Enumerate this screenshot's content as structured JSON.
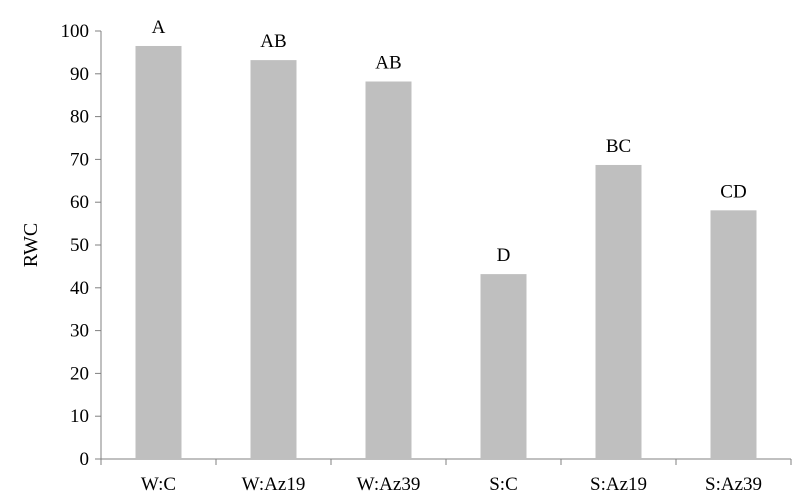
{
  "chart_data": {
    "type": "bar",
    "categories": [
      "W:C",
      "W:Az19",
      "W:Az39",
      "S:C",
      "S:Az19",
      "S:Az39"
    ],
    "values": [
      96.5,
      93.2,
      88.2,
      43.2,
      68.7,
      58.1
    ],
    "annotations": [
      "A",
      "AB",
      "AB",
      "D",
      "BC",
      "CD"
    ],
    "ylabel": "RWC",
    "xlabel": "",
    "title": "",
    "ylim": [
      0,
      100
    ],
    "yticks": [
      0,
      10,
      20,
      30,
      40,
      50,
      60,
      70,
      80,
      90,
      100
    ],
    "grid": false,
    "legend": "none",
    "colors": {
      "bar": "#bfbfbf",
      "axis": "#808080",
      "text": "#000000"
    }
  }
}
